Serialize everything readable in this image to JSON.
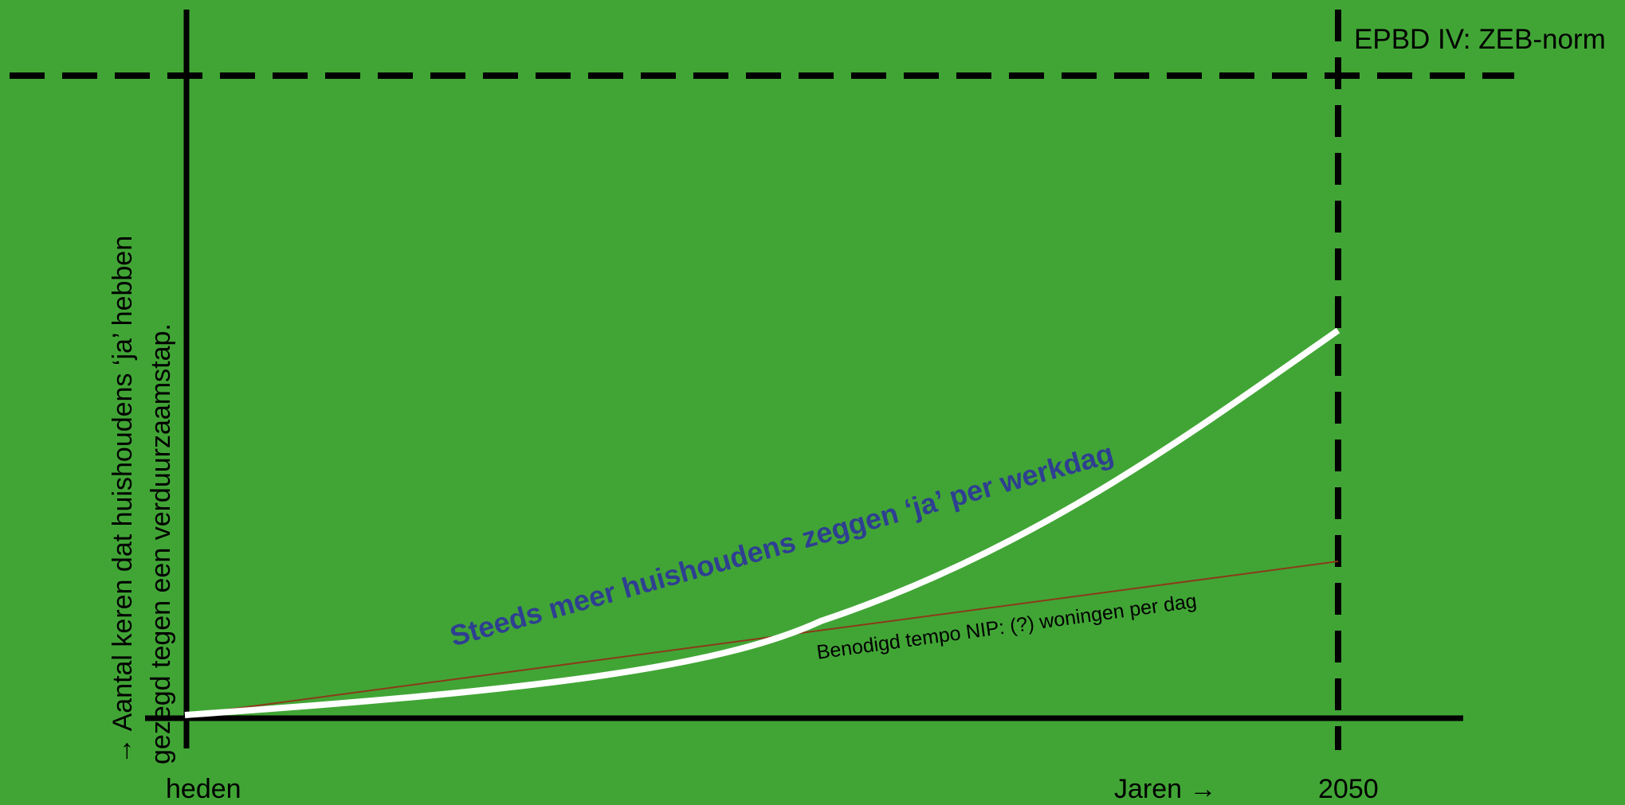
{
  "colors": {
    "background": "#41a535",
    "axes": "#000000",
    "growth_curve": "#ffffff",
    "required_pace_line": "#8b3a1a",
    "curve_label": "#2e3f91"
  },
  "labels": {
    "norm_line": "EPBD IV: ZEB-norm",
    "y_axis_line1": "→ Aantal  keren dat huishoudens ‘ja’ hebben",
    "y_axis_line2": "gezegd tegen een verduurzaamstap.",
    "x_start": "heden",
    "x_axis": "Jaren →",
    "x_end": "2050",
    "growth_curve": "Steeds meer huishoudens zeggen ‘ja’ per werkdag",
    "required_pace": "Benodigd tempo NIP: (?) woningen per dag"
  }
}
